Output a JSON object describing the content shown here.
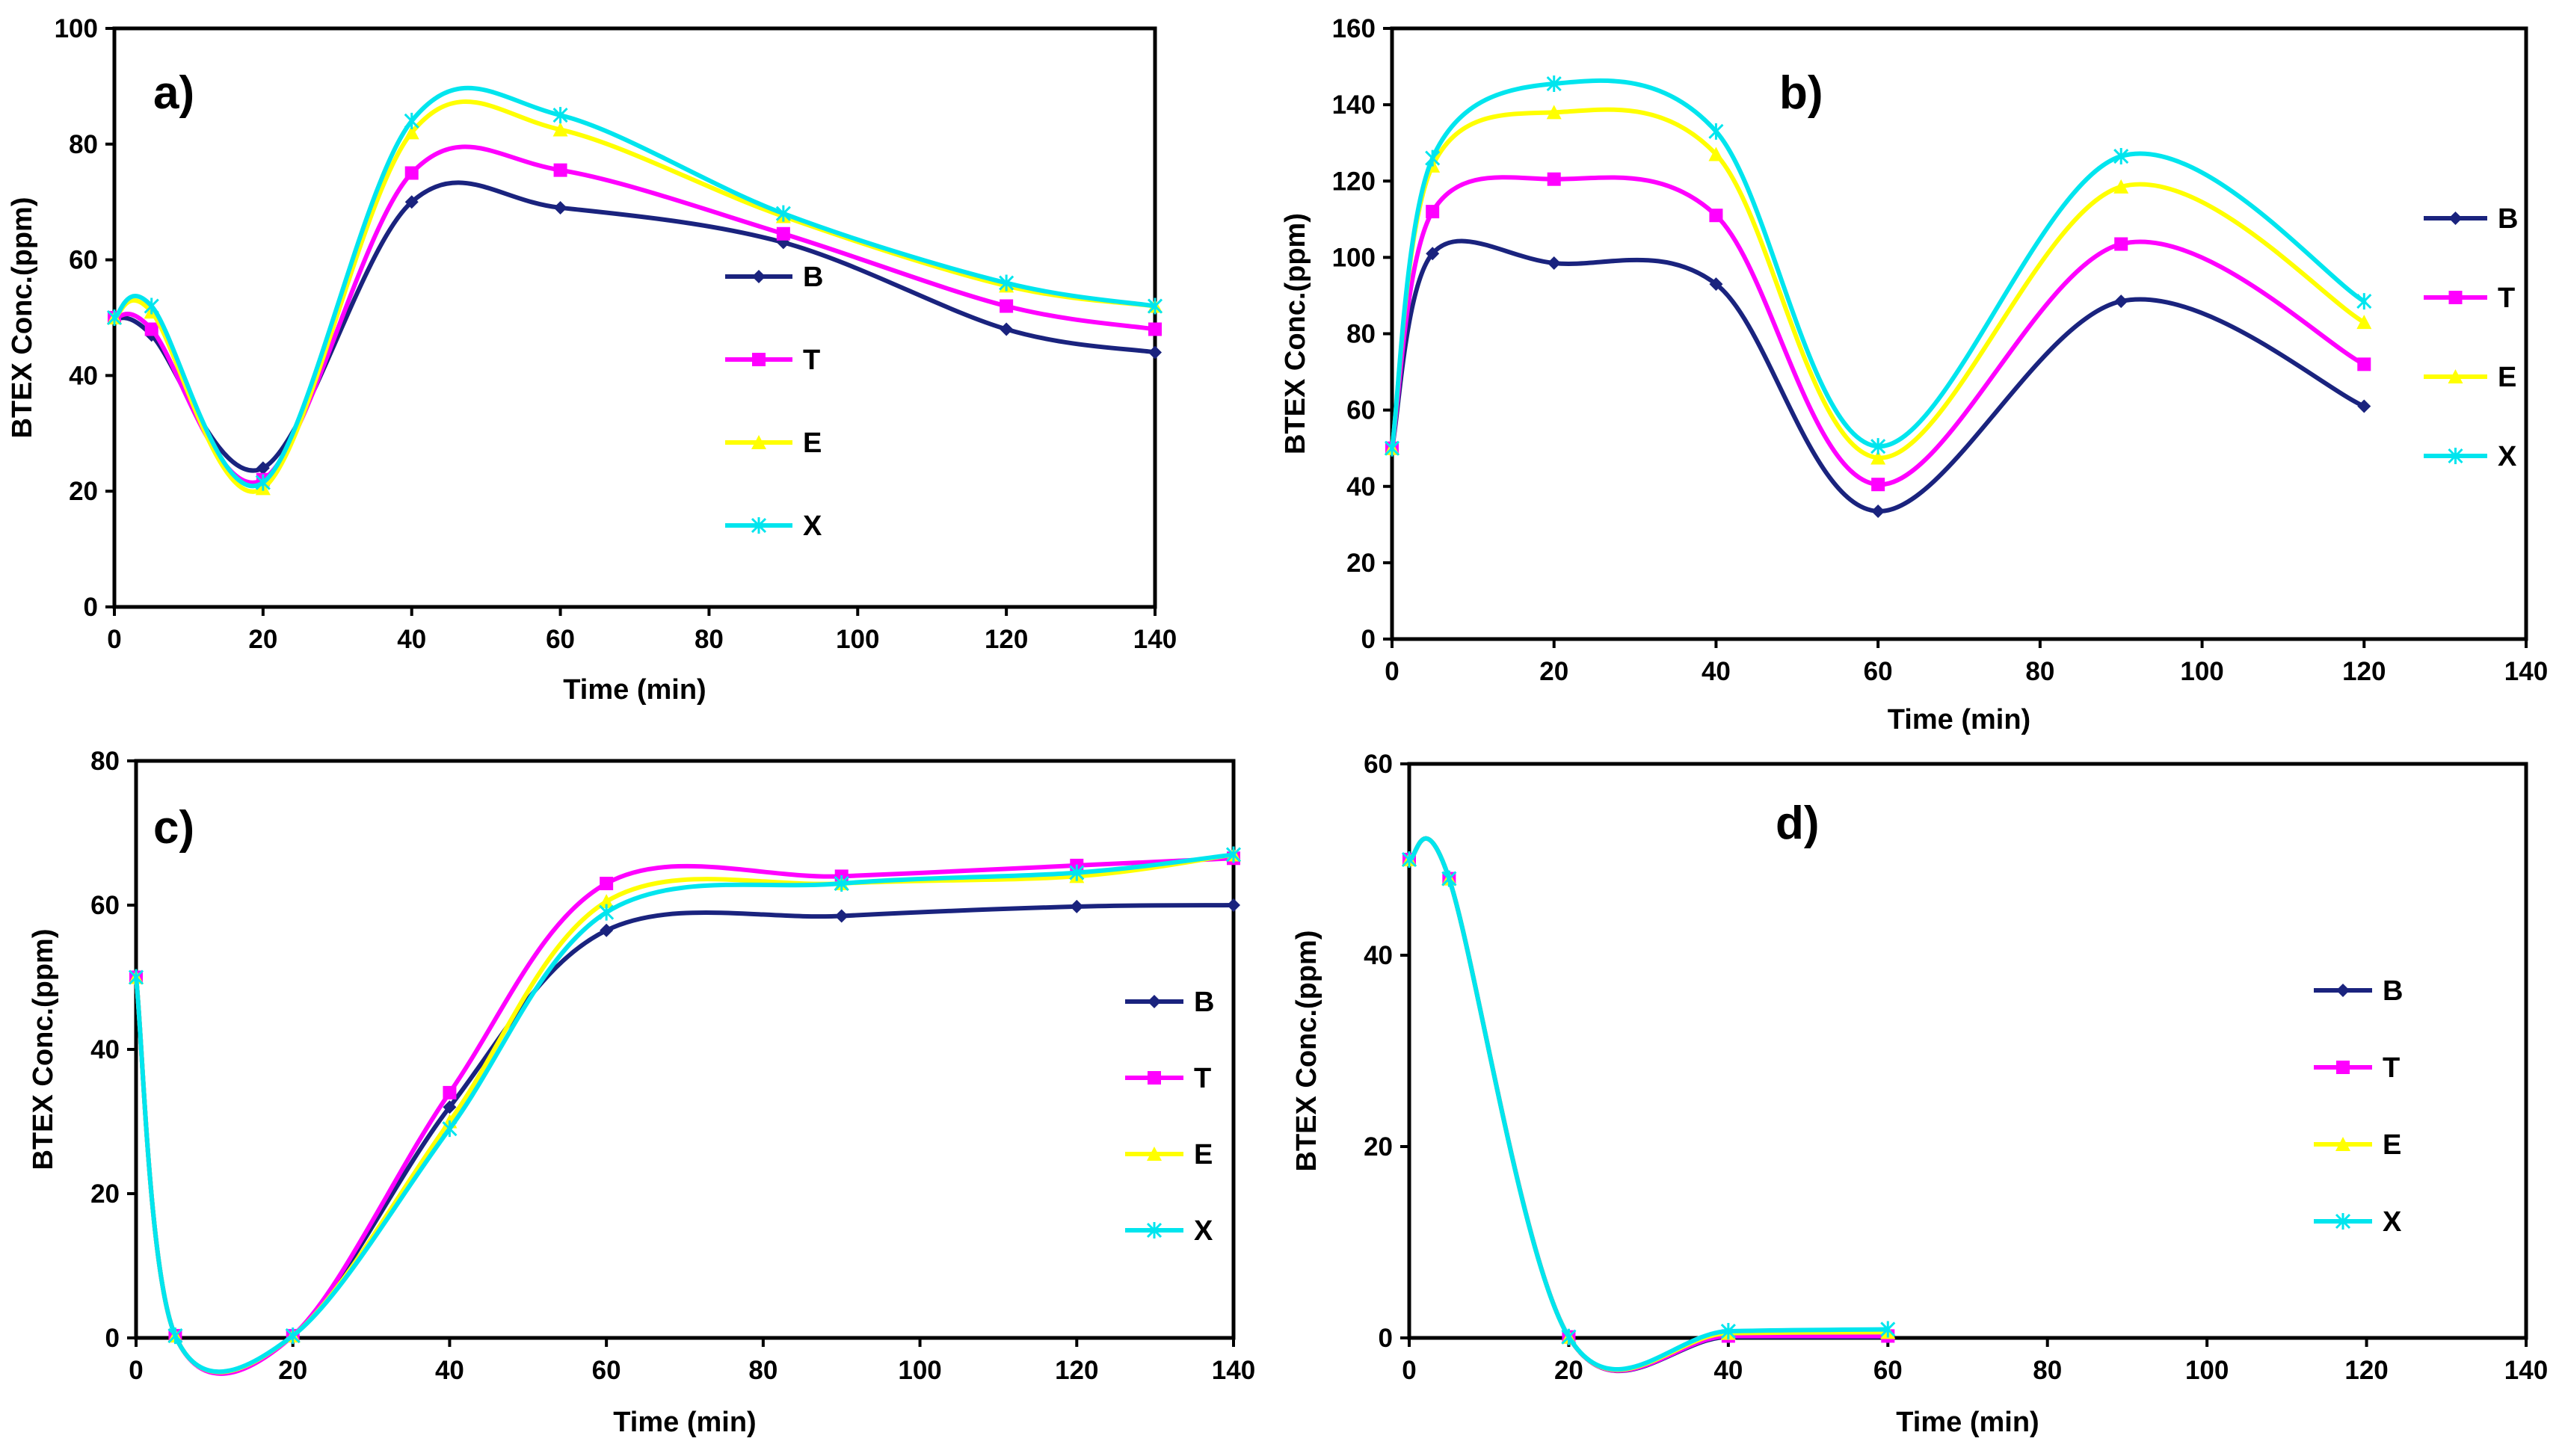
{
  "chart_data": [
    {
      "id": "a",
      "type": "line",
      "panel_label": "a)",
      "xlabel": "Time (min)",
      "ylabel": "BTEX Conc.(ppm)",
      "xlim": [
        0,
        140
      ],
      "ylim": [
        0,
        100
      ],
      "xticks": [
        0,
        20,
        40,
        60,
        80,
        100,
        120,
        140
      ],
      "yticks": [
        0,
        20,
        40,
        60,
        80,
        100
      ],
      "legend_position": "center-right",
      "series": [
        {
          "name": "B",
          "color": "#1a237e",
          "marker": "diamond",
          "x": [
            0,
            5,
            20,
            40,
            60,
            90,
            120,
            140
          ],
          "y": [
            50,
            47,
            24,
            70,
            69,
            63,
            48,
            44
          ]
        },
        {
          "name": "T",
          "color": "#ff00ff",
          "marker": "square",
          "x": [
            0,
            5,
            20,
            40,
            60,
            90,
            120,
            140
          ],
          "y": [
            50,
            48,
            22,
            75,
            75.5,
            64.5,
            52,
            48
          ]
        },
        {
          "name": "E",
          "color": "#ffff00",
          "marker": "triangle",
          "x": [
            0,
            5,
            20,
            40,
            60,
            90,
            120,
            140
          ],
          "y": [
            50,
            51,
            20.5,
            82,
            82.5,
            67.5,
            55.5,
            52
          ]
        },
        {
          "name": "X",
          "color": "#00e5ee",
          "marker": "x",
          "x": [
            0,
            5,
            20,
            40,
            60,
            90,
            120,
            140
          ],
          "y": [
            50,
            52,
            21.5,
            84,
            85,
            68,
            56,
            52
          ]
        }
      ]
    },
    {
      "id": "b",
      "type": "line",
      "panel_label": "b)",
      "xlabel": "Time (min)",
      "ylabel": "BTEX Conc.(ppm)",
      "xlim": [
        0,
        140
      ],
      "ylim": [
        0,
        160
      ],
      "xticks": [
        0,
        20,
        40,
        60,
        80,
        100,
        120,
        140
      ],
      "yticks": [
        0,
        20,
        40,
        60,
        80,
        100,
        120,
        140,
        160
      ],
      "legend_position": "right outside",
      "series": [
        {
          "name": "B",
          "color": "#1a237e",
          "marker": "diamond",
          "x": [
            0,
            5,
            20,
            40,
            60,
            90,
            120
          ],
          "y": [
            50,
            101,
            98.5,
            93,
            33.5,
            88.5,
            61
          ]
        },
        {
          "name": "T",
          "color": "#ff00ff",
          "marker": "square",
          "x": [
            0,
            5,
            20,
            40,
            60,
            90,
            120
          ],
          "y": [
            50,
            112,
            120.5,
            111,
            40.5,
            103.5,
            72
          ]
        },
        {
          "name": "E",
          "color": "#ffff00",
          "marker": "triangle",
          "x": [
            0,
            5,
            20,
            40,
            60,
            90,
            120
          ],
          "y": [
            50,
            124,
            138,
            127,
            47.5,
            118.5,
            83
          ]
        },
        {
          "name": "X",
          "color": "#00e5ee",
          "marker": "x",
          "x": [
            0,
            5,
            20,
            40,
            60,
            90,
            120
          ],
          "y": [
            50,
            126,
            145.5,
            133,
            50.5,
            126.5,
            88.5
          ]
        }
      ]
    },
    {
      "id": "c",
      "type": "line",
      "panel_label": "c)",
      "xlabel": "Time (min)",
      "ylabel": "BTEX Conc.(ppm)",
      "xlim": [
        0,
        140
      ],
      "ylim": [
        0,
        80
      ],
      "xticks": [
        0,
        20,
        40,
        60,
        80,
        100,
        120,
        140
      ],
      "yticks": [
        0,
        20,
        40,
        60,
        80
      ],
      "legend_position": "center-right",
      "series": [
        {
          "name": "B",
          "color": "#1a237e",
          "marker": "diamond",
          "x": [
            0,
            5,
            20,
            40,
            60,
            90,
            120,
            140
          ],
          "y": [
            50,
            0.3,
            0.3,
            32,
            56.5,
            58.5,
            59.8,
            60
          ]
        },
        {
          "name": "T",
          "color": "#ff00ff",
          "marker": "square",
          "x": [
            0,
            5,
            20,
            40,
            60,
            90,
            120,
            140
          ],
          "y": [
            50,
            0.3,
            0.3,
            34,
            63,
            64,
            65.5,
            66.5
          ]
        },
        {
          "name": "E",
          "color": "#ffff00",
          "marker": "triangle",
          "x": [
            0,
            5,
            20,
            40,
            60,
            90,
            120,
            140
          ],
          "y": [
            50,
            0.3,
            0.3,
            30,
            60.5,
            63,
            64,
            67
          ]
        },
        {
          "name": "X",
          "color": "#00e5ee",
          "marker": "x",
          "x": [
            0,
            5,
            20,
            40,
            60,
            90,
            120,
            140
          ],
          "y": [
            50,
            0.3,
            0.3,
            29,
            59,
            63,
            64.5,
            67
          ]
        }
      ]
    },
    {
      "id": "d",
      "type": "line",
      "panel_label": "d)",
      "xlabel": "Time (min)",
      "ylabel": "BTEX Conc.(ppm)",
      "xlim": [
        0,
        140
      ],
      "ylim": [
        0,
        60
      ],
      "xticks": [
        0,
        20,
        40,
        60,
        80,
        100,
        120,
        140
      ],
      "yticks": [
        0,
        20,
        40,
        60
      ],
      "legend_position": "center-right",
      "series": [
        {
          "name": "B",
          "color": "#1a237e",
          "marker": "diamond",
          "x": [
            0,
            5,
            20,
            40,
            60
          ],
          "y": [
            50,
            48,
            0.1,
            0.1,
            0.1
          ]
        },
        {
          "name": "T",
          "color": "#ff00ff",
          "marker": "square",
          "x": [
            0,
            5,
            20,
            40,
            60
          ],
          "y": [
            50,
            48,
            0.1,
            0.2,
            0.2
          ]
        },
        {
          "name": "E",
          "color": "#ffff00",
          "marker": "triangle",
          "x": [
            0,
            5,
            20,
            40,
            60
          ],
          "y": [
            50,
            48,
            0.1,
            0.5,
            0.6
          ]
        },
        {
          "name": "X",
          "color": "#00e5ee",
          "marker": "x",
          "x": [
            0,
            5,
            20,
            40,
            60
          ],
          "y": [
            50,
            48,
            0.1,
            0.7,
            0.9
          ]
        }
      ]
    }
  ]
}
